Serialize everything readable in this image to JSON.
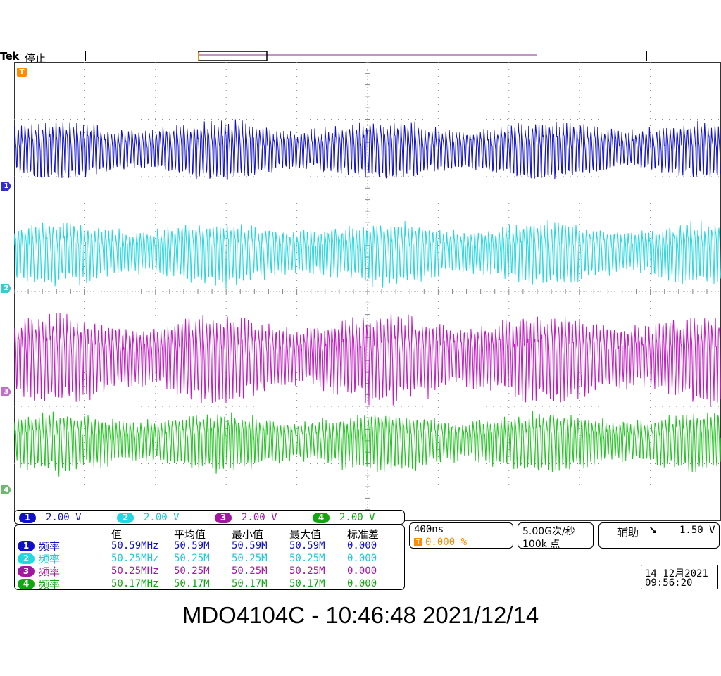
{
  "topbar": {
    "brand": "Tek",
    "state": "停止"
  },
  "trigger_marker": "T",
  "channel_markers": [
    "1",
    "2",
    "3",
    "4"
  ],
  "colors": {
    "ch1": "#1010c8",
    "ch2": "#22d8e0",
    "ch3": "#c418c4",
    "ch4": "#1ec41e",
    "trigger": "#ff8c00",
    "grid": "#888888"
  },
  "channels": [
    {
      "id": "1",
      "scale": "2.00 V"
    },
    {
      "id": "2",
      "scale": "2.00 V"
    },
    {
      "id": "3",
      "scale": "2.00 V"
    },
    {
      "id": "4",
      "scale": "2.00 V"
    }
  ],
  "measurements": {
    "headers": [
      "值",
      "平均值",
      "最小值",
      "最大值",
      "标准差"
    ],
    "rows": [
      {
        "ch": "1",
        "label": "频率",
        "value": "50.59MHz",
        "mean": "50.59M",
        "min": "50.59M",
        "max": "50.59M",
        "std": "0.000"
      },
      {
        "ch": "2",
        "label": "频率",
        "value": "50.25MHz",
        "mean": "50.25M",
        "min": "50.25M",
        "max": "50.25M",
        "std": "0.000"
      },
      {
        "ch": "3",
        "label": "频率",
        "value": "50.25MHz",
        "mean": "50.25M",
        "min": "50.25M",
        "max": "50.25M",
        "std": "0.000"
      },
      {
        "ch": "4",
        "label": "频率",
        "value": "50.17MHz",
        "mean": "50.17M",
        "min": "50.17M",
        "max": "50.17M",
        "std": "0.000"
      }
    ]
  },
  "timebase": {
    "scale": "400ns",
    "trigger_icon": "T",
    "trigger_position": "0.000 %"
  },
  "acquisition": {
    "rate": "5.00G次/秒",
    "points": "100k 点"
  },
  "aux": {
    "label": "辅助",
    "slope_icon": "falling-edge-icon",
    "slope_glyph": "↘",
    "level": "1.50 V"
  },
  "clock": {
    "date": "14 12月2021",
    "time": "09:56:20"
  },
  "caption": "MDO4104C - 10:46:48   2021/12/14"
}
